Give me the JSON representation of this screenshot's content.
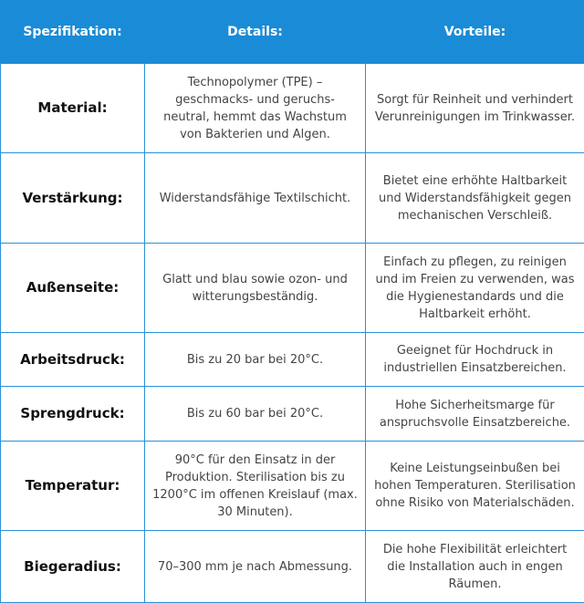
{
  "table": {
    "header": [
      "Spezifikation:",
      "Details:",
      "Vorteile:"
    ],
    "rows": [
      [
        "Material:",
        "Technopolymer (TPE) – geschmacks- und geruchs-neutral, hemmt das Wachstum von Bakterien und Algen.",
        "Sorgt für Reinheit und verhindert Verunreinigungen im Trinkwasser."
      ],
      [
        "Verstärkung:",
        "Widerstandsfähige Textilschicht.",
        "Bietet eine erhöhte Haltbarkeit und Widerstandsfähigkeit gegen mechanischen Verschleiß."
      ],
      [
        "Außenseite:",
        "Glatt und blau sowie ozon- und witterungsbeständig.",
        "Einfach zu pflegen, zu reinigen und im Freien zu verwenden, was die Hygienestandards und die Haltbarkeit erhöht."
      ],
      [
        "Arbeitsdruck:",
        "Bis zu 20 bar bei 20°C.",
        "Geeignet für Hochdruck in industriellen Einsatzbereichen."
      ],
      [
        "Sprengdruck:",
        "Bis zu 60 bar bei 20°C.",
        "Hohe Sicherheitsmarge für anspruchsvolle Einsatzbereiche."
      ],
      [
        "Temperatur:",
        "90°C für den Einsatz in der Produktion. Sterilisation bis zu 1200°C im offenen Kreislauf (max. 30 Minuten).",
        "Keine Leistungseinbußen bei hohen Temperaturen. Sterilisation ohne Risiko von Materialschäden."
      ],
      [
        "Biegeradius:",
        "70–300 mm je nach Abmessung.",
        "Die hohe Flexibilität erleichtert die Installation auch in engen Räumen."
      ]
    ]
  }
}
